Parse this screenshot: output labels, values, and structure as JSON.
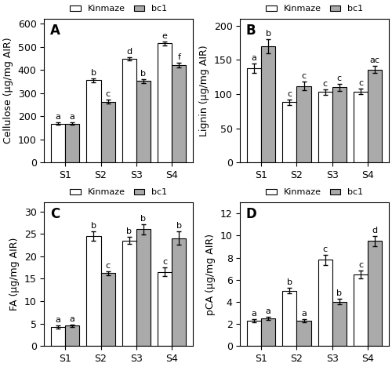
{
  "chart_data": [
    {
      "type": "bar",
      "title": "A",
      "categories": [
        "S1",
        "S2",
        "S3",
        "S4"
      ],
      "ylabel": "Cellulose (μg/mg AIR)",
      "ylim": [
        0,
        620
      ],
      "yticks": [
        0,
        100,
        200,
        300,
        400,
        500,
        600
      ],
      "legend": "upper center",
      "series": [
        {
          "name": "Kinmaze",
          "color": "#FFFFFF",
          "values": [
            168,
            355,
            448,
            515
          ],
          "errors": [
            5,
            8,
            7,
            8
          ],
          "annotations": [
            "a",
            "b",
            "d",
            "e"
          ]
        },
        {
          "name": "bc1",
          "color": "#AAAAAA",
          "values": [
            168,
            262,
            352,
            420
          ],
          "errors": [
            5,
            8,
            8,
            10
          ],
          "annotations": [
            "a",
            "c",
            "b",
            "f"
          ]
        }
      ]
    },
    {
      "type": "bar",
      "title": "B",
      "categories": [
        "S1",
        "S2",
        "S3",
        "S4"
      ],
      "ylabel": "Lignin (μg/mg AIR)",
      "ylim": [
        0,
        210
      ],
      "yticks": [
        0,
        50,
        100,
        150,
        200
      ],
      "legend": "upper center",
      "series": [
        {
          "name": "Kinmaze",
          "color": "#FFFFFF",
          "values": [
            138,
            88,
            103,
            104
          ],
          "errors": [
            7,
            4,
            4,
            4
          ],
          "annotations": [
            "a",
            "c",
            "c",
            "c"
          ]
        },
        {
          "name": "bc1",
          "color": "#AAAAAA",
          "values": [
            170,
            112,
            110,
            136
          ],
          "errors": [
            10,
            6,
            5,
            5
          ],
          "annotations": [
            "b",
            "c",
            "c",
            "ac"
          ]
        }
      ]
    },
    {
      "type": "bar",
      "title": "C",
      "categories": [
        "S1",
        "S2",
        "S3",
        "S4"
      ],
      "ylabel": "FA (μg/mg AIR)",
      "ylim": [
        0,
        32
      ],
      "yticks": [
        0,
        5,
        10,
        15,
        20,
        25,
        30
      ],
      "legend": "upper center",
      "series": [
        {
          "name": "Kinmaze",
          "color": "#FFFFFF",
          "values": [
            4.2,
            24.5,
            23.5,
            16.5
          ],
          "errors": [
            0.3,
            1.0,
            0.8,
            1.0
          ],
          "annotations": [
            "a",
            "b",
            "b",
            "c"
          ]
        },
        {
          "name": "bc1",
          "color": "#AAAAAA",
          "values": [
            4.5,
            16.2,
            26.0,
            24.0
          ],
          "errors": [
            0.3,
            0.5,
            1.2,
            1.5
          ],
          "annotations": [
            "a",
            "c",
            "b",
            "b"
          ]
        }
      ]
    },
    {
      "type": "bar",
      "title": "D",
      "categories": [
        "S1",
        "S2",
        "S3",
        "S4"
      ],
      "ylabel": "pCA (μg/mg AIR)",
      "ylim": [
        0,
        13
      ],
      "yticks": [
        0,
        2,
        4,
        6,
        8,
        10,
        12
      ],
      "legend": "upper center",
      "series": [
        {
          "name": "Kinmaze",
          "color": "#FFFFFF",
          "values": [
            2.3,
            5.0,
            7.8,
            6.5
          ],
          "errors": [
            0.15,
            0.25,
            0.45,
            0.35
          ],
          "annotations": [
            "a",
            "b",
            "c",
            "c"
          ]
        },
        {
          "name": "bc1",
          "color": "#AAAAAA",
          "values": [
            2.5,
            2.3,
            4.0,
            9.5
          ],
          "errors": [
            0.15,
            0.15,
            0.25,
            0.45
          ],
          "annotations": [
            "a",
            "a",
            "b",
            "d"
          ]
        }
      ]
    }
  ]
}
